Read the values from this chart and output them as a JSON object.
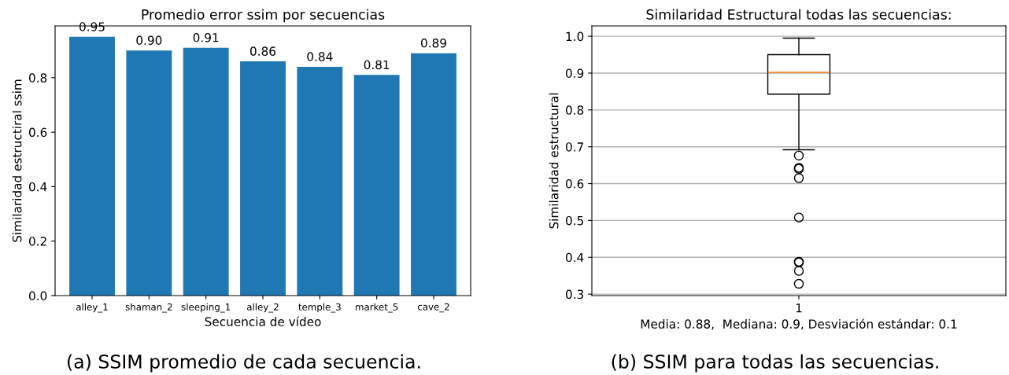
{
  "chart_data": [
    {
      "type": "bar",
      "title": "Promedio error ssim por secuencias",
      "xlabel": "Secuencia de vídeo",
      "ylabel": "Similaridad estructiral ssim",
      "categories": [
        "alley_1",
        "shaman_2",
        "sleeping_1",
        "alley_2",
        "temple_3",
        "market_5",
        "cave_2"
      ],
      "values": [
        0.95,
        0.9,
        0.91,
        0.86,
        0.84,
        0.81,
        0.89
      ],
      "value_labels": [
        "0.95",
        "0.90",
        "0.91",
        "0.86",
        "0.84",
        "0.81",
        "0.89"
      ],
      "color": "#1f77b4",
      "ylim": [
        0,
        0.99
      ],
      "yticks": [
        {
          "value": 0,
          "label": "0.0"
        },
        0.2,
        0.4,
        0.6,
        0.8
      ],
      "grid": false,
      "annotations": [
        "(a) SSIM promedio de cada secuencia."
      ]
    },
    {
      "type": "box",
      "title": "Similaridad Estructural todas las secuencias:",
      "xlabel": "Media: 0.88,  Mediana: 0.9, Desviación estándar: 0.1",
      "ylabel": "Similaridad estructural",
      "categories": [
        "1"
      ],
      "boxes": [
        {
          "low": 0.692,
          "q1": 0.843,
          "median": 0.902,
          "q3": 0.95,
          "high": 0.995,
          "outliers": [
            0.676,
            0.643,
            0.64,
            0.615,
            0.508,
            0.388,
            0.386,
            0.363,
            0.328
          ]
        }
      ],
      "ylim": [
        0.296,
        1.028
      ],
      "yticks": [
        0.3,
        0.4,
        0.5,
        0.6,
        0.7,
        0.8,
        0.9,
        {
          "value": 1,
          "label": "1.0"
        }
      ],
      "grid": "y",
      "annotations": [
        "(b) SSIM para todas las secuencias."
      ]
    }
  ]
}
